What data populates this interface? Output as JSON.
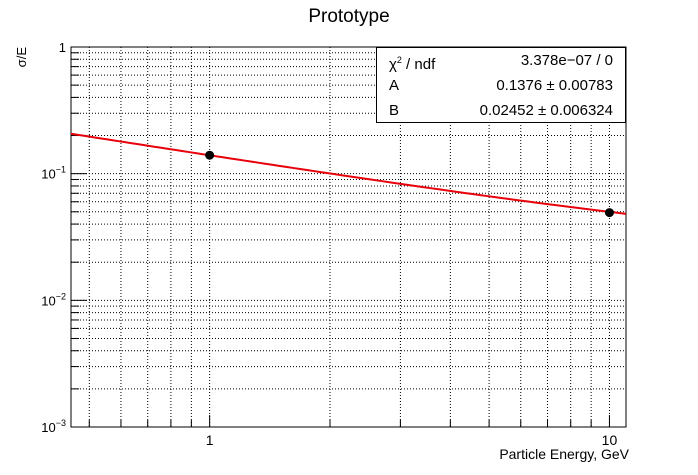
{
  "chart_data": {
    "type": "scatter",
    "title": "Prototype",
    "xlabel": "Particle Energy, GeV",
    "ylabel": "σ/E",
    "x_scale": "log",
    "y_scale": "log",
    "xlim": [
      0.45,
      11
    ],
    "ylim": [
      0.001,
      1
    ],
    "grid": true,
    "x_tick_labels": [
      {
        "value": 1,
        "label": "1"
      },
      {
        "value": 10,
        "label": "10"
      }
    ],
    "y_tick_labels": [
      {
        "value": 0.001,
        "base": "10",
        "exp": "−3"
      },
      {
        "value": 0.01,
        "base": "10",
        "exp": "−2"
      },
      {
        "value": 0.1,
        "base": "10",
        "exp": "−1"
      },
      {
        "value": 1,
        "base": "1",
        "exp": ""
      }
    ],
    "points": [
      {
        "x": 1,
        "y": 0.1398
      },
      {
        "x": 10,
        "y": 0.0493
      }
    ],
    "fit": {
      "A": 0.1376,
      "B": 0.02452,
      "color": "#e8000b",
      "x_range": [
        0.45,
        11
      ]
    },
    "point_color": "#000000",
    "stats": {
      "chi2_symbol": "χ",
      "chi2_sup": "2",
      "chi2_label": " / ndf",
      "chi2_value": "3.378e−07 / 0",
      "rows": [
        {
          "name": "A",
          "value": "0.1376 ± 0.00783"
        },
        {
          "name": "B",
          "value": "0.02452 ± 0.006324"
        }
      ]
    }
  }
}
